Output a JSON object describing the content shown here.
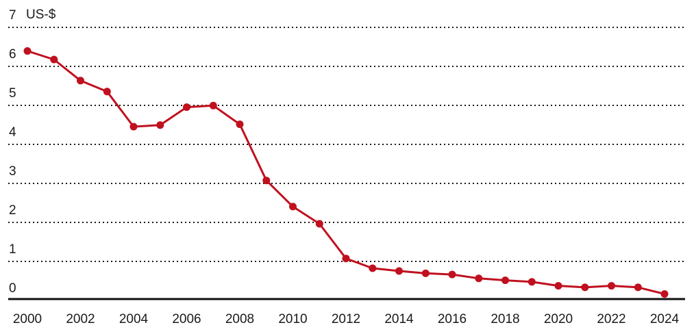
{
  "chart_data": {
    "type": "line",
    "unit_label": "US-$",
    "x": [
      2000,
      2001,
      2002,
      2003,
      2004,
      2005,
      2006,
      2007,
      2008,
      2009,
      2010,
      2011,
      2012,
      2013,
      2014,
      2015,
      2016,
      2017,
      2018,
      2019,
      2020,
      2021,
      2022,
      2023,
      2024
    ],
    "series": [
      {
        "values": [
          6.36,
          6.14,
          5.6,
          5.32,
          4.42,
          4.46,
          4.92,
          4.96,
          4.48,
          3.04,
          2.37,
          1.93,
          1.04,
          0.79,
          0.72,
          0.66,
          0.63,
          0.53,
          0.48,
          0.44,
          0.34,
          0.3,
          0.34,
          0.3,
          0.13
        ],
        "color": "#c0101f"
      }
    ],
    "x_ticks": [
      "2000",
      "2002",
      "2004",
      "2006",
      "2008",
      "2010",
      "2012",
      "2014",
      "2016",
      "2018",
      "2020",
      "2022",
      "2024"
    ],
    "y_ticks": [
      "0",
      "1",
      "2",
      "3",
      "4",
      "5",
      "6",
      "7"
    ],
    "ylim": [
      0,
      7
    ],
    "grid": true,
    "grid_style": "dotted",
    "legend": "none"
  }
}
